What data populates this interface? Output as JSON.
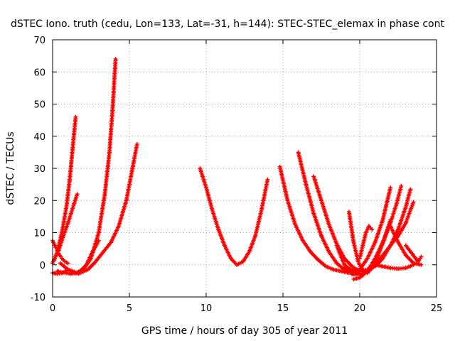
{
  "chart_data": {
    "type": "line",
    "title": "dSTEC Iono. truth (cedu, Lon=133, Lat=-31, h=144): STEC-STEC_elemax in phase cont",
    "xlabel": "GPS time / hours of day 305 of year 2011",
    "ylabel": "dSTEC  / TECUs",
    "xlim": [
      0,
      25
    ],
    "ylim": [
      -10,
      70
    ],
    "xticks": [
      0,
      5,
      10,
      15,
      20,
      25
    ],
    "yticks": [
      -10,
      0,
      10,
      20,
      30,
      40,
      50,
      60,
      70
    ],
    "grid": true,
    "marker": "plus",
    "color": "#ff0000",
    "series": [
      {
        "x": [
          0.0,
          0.3,
          0.6,
          0.9,
          1.1,
          1.3,
          1.5
        ],
        "y": [
          0.5,
          4,
          10,
          18,
          26,
          36,
          46
        ]
      },
      {
        "x": [
          0.0,
          0.2,
          0.4,
          0.6,
          0.8,
          1.0
        ],
        "y": [
          7.5,
          5.5,
          3.5,
          2.0,
          1.0,
          0.5
        ]
      },
      {
        "x": [
          0.1,
          0.4,
          0.7,
          1.0,
          1.2,
          1.4,
          1.6
        ],
        "y": [
          1.5,
          4.5,
          9,
          13,
          16,
          19,
          22
        ]
      },
      {
        "x": [
          0.0,
          0.3,
          0.6,
          1.0,
          1.4,
          1.7
        ],
        "y": [
          -2.5,
          -2.8,
          -2.6,
          -1.5,
          -2.2,
          -2.8
        ]
      },
      {
        "x": [
          0.5,
          1.0,
          1.5,
          2.0,
          2.5,
          3.0,
          3.4,
          3.7,
          3.9,
          4.1
        ],
        "y": [
          0.5,
          -1.5,
          -2.5,
          -1.5,
          2,
          10,
          22,
          35,
          48,
          64
        ]
      },
      {
        "x": [
          0.3,
          0.8,
          1.2,
          1.7,
          2.2,
          2.6,
          3.0
        ],
        "y": [
          -2.0,
          -2.5,
          -2.8,
          -2.5,
          0,
          4,
          7.5
        ]
      },
      {
        "x": [
          1.8,
          2.3,
          2.8,
          3.3,
          3.8,
          4.3,
          4.8,
          5.2,
          5.5
        ],
        "y": [
          -2.5,
          -1.5,
          1,
          4,
          7,
          12,
          20,
          30,
          37.5
        ]
      },
      {
        "x": [
          9.6,
          10.0,
          10.4,
          10.8,
          11.2,
          11.6,
          12.0,
          12.4,
          12.8,
          13.2,
          13.6,
          14.0
        ],
        "y": [
          30,
          24,
          17,
          11,
          6,
          2,
          0,
          1,
          4,
          9,
          17,
          26.5
        ]
      },
      {
        "x": [
          14.8,
          15.3,
          15.8,
          16.3,
          16.8,
          17.3,
          17.8,
          18.3,
          18.8,
          19.3
        ],
        "y": [
          30.5,
          20,
          12.5,
          7.5,
          4,
          1.5,
          -0.5,
          -1.5,
          -2,
          -2.5
        ]
      },
      {
        "x": [
          16.0,
          16.5,
          17.0,
          17.5,
          18.0,
          18.5,
          19.0,
          19.5,
          19.9
        ],
        "y": [
          35,
          25,
          16,
          9,
          4,
          0.5,
          -1.5,
          -2.5,
          -2.5
        ]
      },
      {
        "x": [
          17.0,
          17.5,
          18.0,
          18.5,
          19.0,
          19.5,
          20.0
        ],
        "y": [
          27.5,
          20,
          12.5,
          6.5,
          2,
          -0.5,
          -2.0
        ]
      },
      {
        "x": [
          18.5,
          19.0,
          19.5,
          20.0,
          20.5,
          21.0,
          21.5,
          22.0
        ],
        "y": [
          6,
          0,
          -2,
          -1.5,
          2,
          7,
          14,
          24
        ]
      },
      {
        "x": [
          19.3,
          19.6,
          19.9,
          20.2,
          20.5,
          20.8,
          21.2,
          21.6,
          22.0
        ],
        "y": [
          16.5,
          7,
          1,
          -2,
          -2.5,
          -1,
          3,
          8,
          14
        ]
      },
      {
        "x": [
          19.6,
          20.0,
          20.5,
          21.0,
          21.5,
          22.0,
          22.4,
          22.7
        ],
        "y": [
          -4.5,
          -4,
          -2,
          2,
          7,
          13,
          19,
          24.5
        ]
      },
      {
        "x": [
          20.0,
          20.2,
          20.4,
          20.6,
          20.8
        ],
        "y": [
          2,
          6,
          10,
          12,
          11
        ]
      },
      {
        "x": [
          19.0,
          19.5,
          20.0,
          20.5,
          21.0,
          21.5,
          22.0,
          22.5,
          23.0,
          23.3
        ],
        "y": [
          -1,
          -1.5,
          -1.8,
          -1.5,
          -0.5,
          2,
          6,
          11,
          18,
          23.5
        ]
      },
      {
        "x": [
          19.5,
          20.0,
          20.5,
          21.0,
          21.5,
          22.0,
          22.5,
          23.0,
          23.3,
          23.5
        ],
        "y": [
          -3,
          -3,
          -2,
          0,
          3,
          6,
          9,
          13,
          17,
          19.5
        ]
      },
      {
        "x": [
          21.0,
          21.5,
          22.0,
          22.5,
          23.0,
          23.5
        ],
        "y": [
          0,
          -0.5,
          -1,
          -1.2,
          -1,
          0
        ]
      },
      {
        "x": [
          22.0,
          22.5,
          23.0,
          23.5,
          24.0
        ],
        "y": [
          12,
          7,
          3,
          0.5,
          0
        ]
      },
      {
        "x": [
          23.0,
          23.4,
          23.8,
          24.0
        ],
        "y": [
          6,
          3.5,
          1,
          2.5
        ]
      }
    ]
  }
}
